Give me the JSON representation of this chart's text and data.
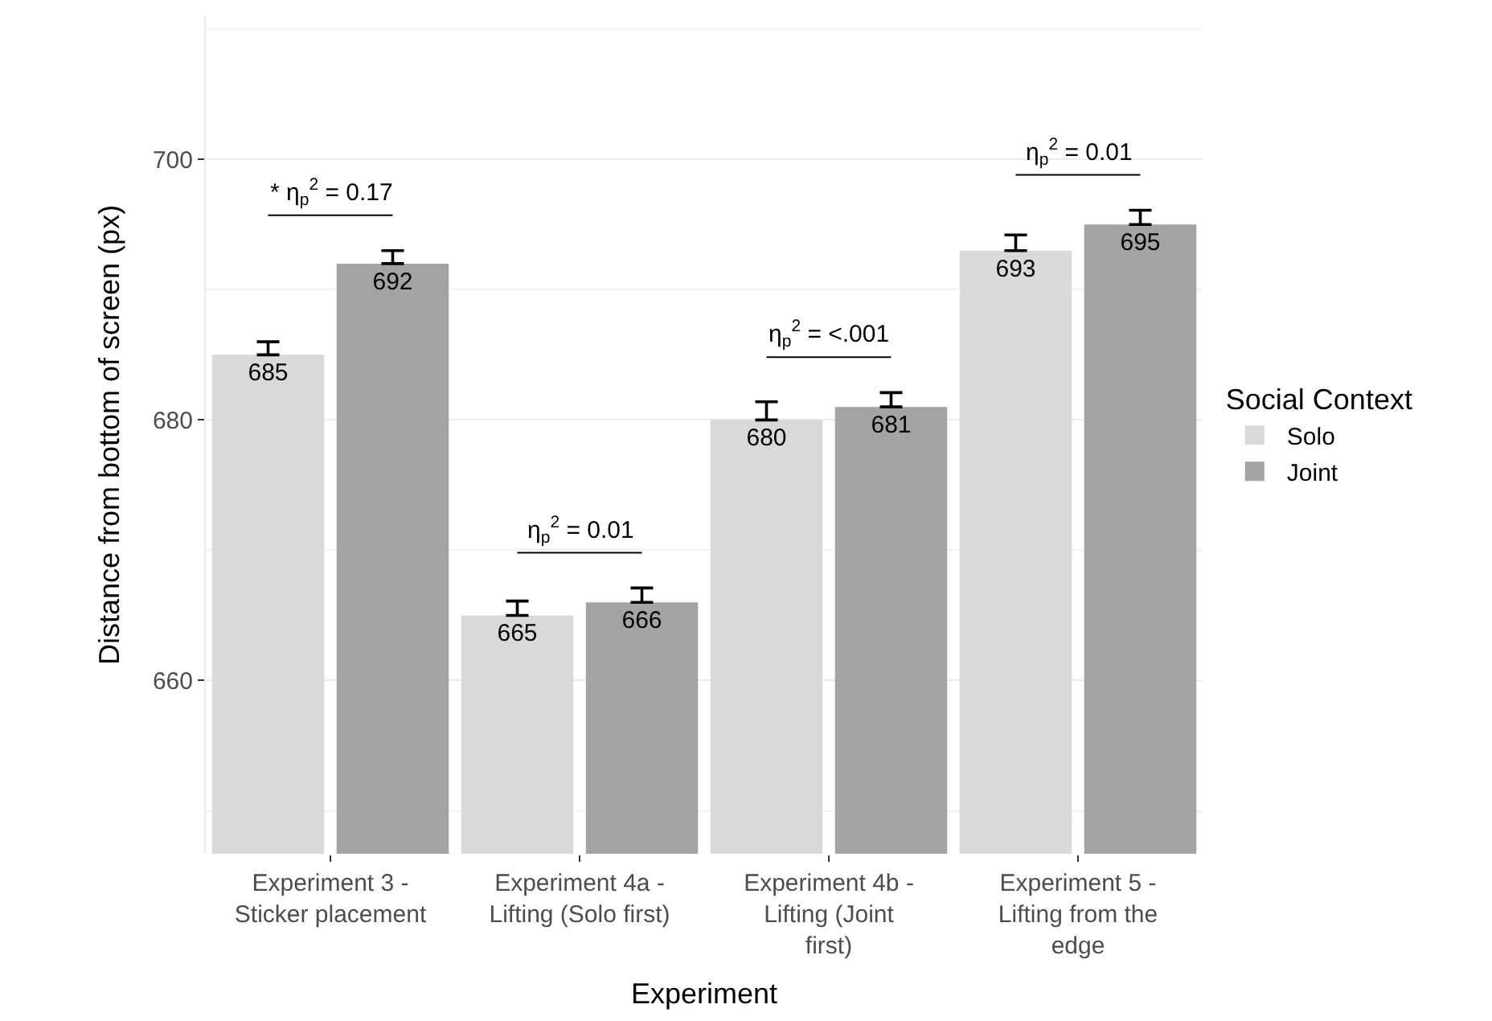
{
  "chart_data": {
    "type": "bar",
    "xlabel": "Experiment",
    "ylabel": "Distance from bottom of screen (px)",
    "legend_title": "Social Context",
    "categories": [
      "Experiment 3 -\nSticker placement",
      "Experiment 4a -\nLifting (Solo first)",
      "Experiment 4b -\nLifting (Joint\nfirst)",
      "Experiment 5 -\nLifting from the\nedge"
    ],
    "series": [
      {
        "name": "Solo",
        "color": "#d9d9d9",
        "values": [
          685,
          665,
          680,
          693
        ],
        "value_labels": [
          "685",
          "665",
          "680",
          "693"
        ],
        "errors": [
          [
            685,
            686.0
          ],
          [
            665,
            666.1
          ],
          [
            680,
            681.4
          ],
          [
            693,
            694.2
          ]
        ]
      },
      {
        "name": "Joint",
        "color": "#a3a3a3",
        "values": [
          692,
          666,
          681,
          695
        ],
        "value_labels": [
          "692",
          "666",
          "681",
          "695"
        ],
        "errors": [
          [
            692,
            693.0
          ],
          [
            666,
            667.1
          ],
          [
            681,
            682.1
          ],
          [
            695,
            696.1
          ]
        ]
      }
    ],
    "ylim": [
      646.7,
      711
    ],
    "yticks": [
      660,
      680,
      700
    ],
    "grid": "y",
    "legend": "right",
    "annotations": [
      "* η$_{p}$$^{2}$ = 0.17",
      "η$_{p}$$^{2}$ = 0.01",
      "η$_{p}$$^{2}$ = <.001",
      "η$_{p}$$^{2}$ = 0.01"
    ]
  }
}
